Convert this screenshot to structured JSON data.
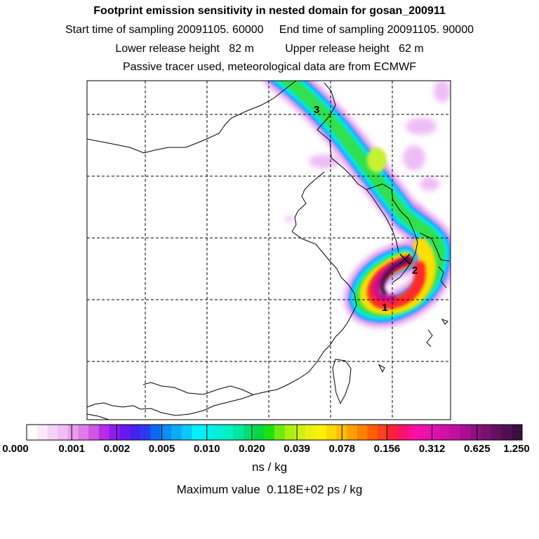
{
  "header": {
    "title": "Footprint emission sensitivity in nested domain for gosan_200911",
    "line2": "Start time of sampling 20091105. 60000     End time of sampling 20091105. 90000",
    "line3": "Lower release height   82 m          Upper release height   62 m",
    "line4": "Passive tracer used, meteorological data are from ECMWF"
  },
  "map": {
    "markers": [
      {
        "label": "3"
      },
      {
        "label": "2"
      },
      {
        "label": "1"
      }
    ]
  },
  "colorbar": {
    "labels": [
      "0.000",
      "0.001",
      "0.002",
      "0.005",
      "0.010",
      "0.020",
      "0.039",
      "0.078",
      "0.156",
      "0.312",
      "0.625",
      "1.250"
    ],
    "colors": [
      "#ffffff",
      "#fbe8fb",
      "#f6d3f6",
      "#f0bdf0",
      "#ea9cee",
      "#e07ae8",
      "#cf55e6",
      "#b32ce6",
      "#8f1cf0",
      "#6a18f0",
      "#4520ee",
      "#2a3cf0",
      "#0a6af0",
      "#0a8ef4",
      "#0aaaf6",
      "#0ac8f8",
      "#00f0ff",
      "#00f0ee",
      "#00f0d8",
      "#00f0c0",
      "#00e8a0",
      "#00e070",
      "#00da40",
      "#20e010",
      "#70ea10",
      "#a8f010",
      "#d0f010",
      "#ecf010",
      "#fff000",
      "#ffd800",
      "#ffbe00",
      "#ffa000",
      "#ff8000",
      "#ff6000",
      "#ff4020",
      "#ff2040",
      "#ff1070",
      "#ff10a0",
      "#f010b0",
      "#e010b0",
      "#d010a8",
      "#c010a0",
      "#a81090",
      "#901080",
      "#7a1070",
      "#641060",
      "#501050",
      "#3a1040"
    ],
    "unit": "ns / kg"
  },
  "footer": {
    "max_value": "Maximum value  0.118E+02 ps / kg"
  }
}
